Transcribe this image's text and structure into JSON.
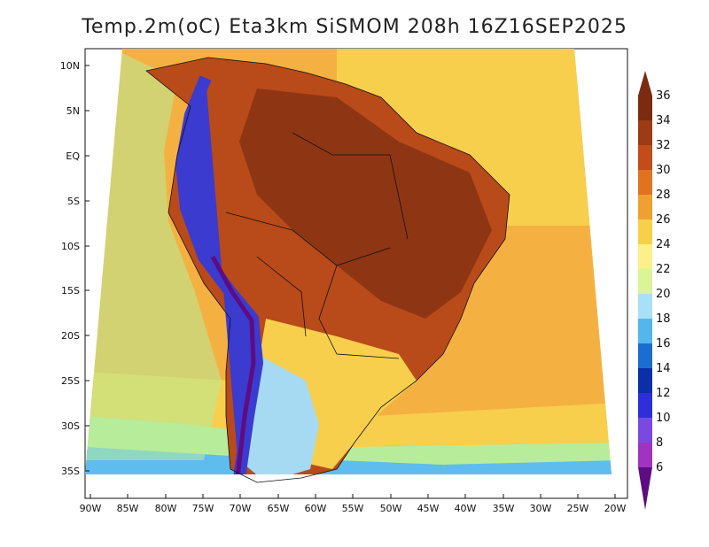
{
  "title": "Temp.2m(oC) Eta3km SiSMOM 208h 16Z16SEP2025",
  "lat_ticks": [
    "10N",
    "5N",
    "EQ",
    "5S",
    "10S",
    "15S",
    "20S",
    "25S",
    "30S",
    "35S"
  ],
  "lon_ticks": [
    "90W",
    "85W",
    "80W",
    "75W",
    "70W",
    "65W",
    "60W",
    "55W",
    "50W",
    "45W",
    "40W",
    "35W",
    "30W",
    "25W",
    "20W"
  ],
  "colorbar": {
    "labels": [
      "36",
      "34",
      "32",
      "30",
      "28",
      "26",
      "24",
      "22",
      "20",
      "18",
      "16",
      "14",
      "12",
      "10",
      "8",
      "6"
    ],
    "colors": [
      "#7a2b10",
      "#9c3b14",
      "#c24d1a",
      "#e0731f",
      "#f0a030",
      "#f7d04a",
      "#fbf188",
      "#d9f598",
      "#a8e0f5",
      "#55b6ec",
      "#1b6ed0",
      "#0a2fa8",
      "#2d2fd8",
      "#7a4ae0",
      "#a034c0",
      "#5e0c82"
    ]
  },
  "colors": {
    "ocean_warm": "#f4b142",
    "ocean_mid": "#f7cf4c",
    "ocean_cool": "#b7ec9a",
    "ocean_cold": "#5fbcef",
    "land_hot": "#b94a19",
    "land_very_hot": "#8e3614",
    "andes": "#3b3bd0",
    "andes_peak": "#5e0c82",
    "south_cool": "#a6d9f2"
  }
}
